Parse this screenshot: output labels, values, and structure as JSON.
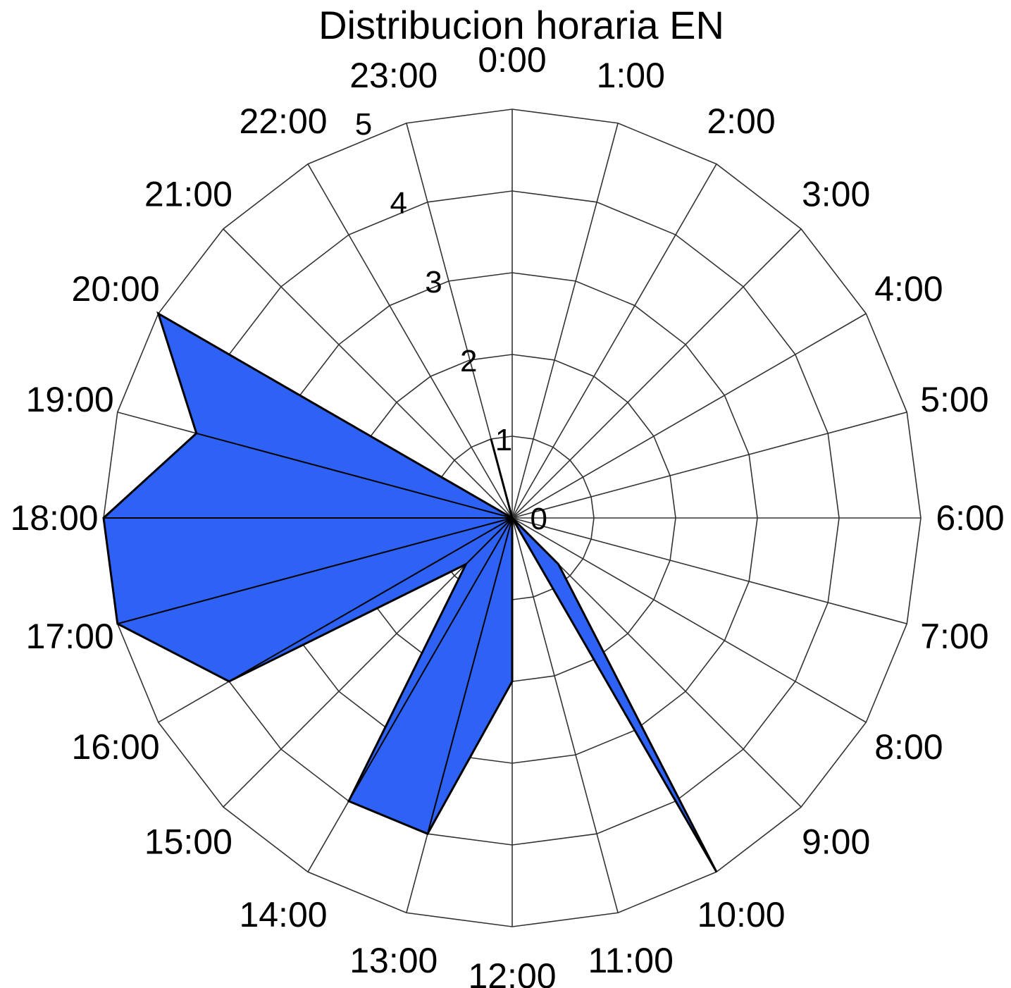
{
  "chart_data": {
    "type": "radar",
    "title": "Distribucion horaria EN",
    "categories": [
      "0:00",
      "1:00",
      "2:00",
      "3:00",
      "4:00",
      "5:00",
      "6:00",
      "7:00",
      "8:00",
      "9:00",
      "10:00",
      "11:00",
      "12:00",
      "13:00",
      "14:00",
      "15:00",
      "16:00",
      "17:00",
      "18:00",
      "19:00",
      "20:00",
      "21:00",
      "22:00",
      "23:00"
    ],
    "values": [
      0,
      0,
      0,
      0,
      0,
      0,
      0,
      0,
      0,
      0.8,
      5,
      0,
      2,
      4,
      4,
      0.8,
      4,
      5,
      5,
      4,
      5,
      0,
      0,
      1
    ],
    "rlim": [
      0,
      5
    ],
    "r_ticks": [
      "0",
      "1",
      "2",
      "3",
      "4",
      "5"
    ],
    "angle_start": "0:00 at top, clockwise",
    "grid": true,
    "legend": "none",
    "fill_color": "#2d62f5",
    "edge_color": "#000000"
  }
}
